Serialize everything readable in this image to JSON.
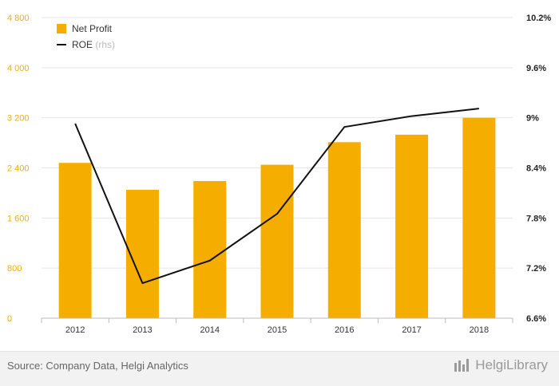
{
  "chart_data": {
    "type": "bar+line",
    "categories": [
      "2012",
      "2013",
      "2014",
      "2015",
      "2016",
      "2017",
      "2018"
    ],
    "series": [
      {
        "name": "Net Profit",
        "type": "bar",
        "axis": "left",
        "color": "#f5ae00",
        "values": [
          2480,
          2050,
          2190,
          2450,
          2810,
          2930,
          3200
        ]
      },
      {
        "name": "ROE",
        "name_suffix": "(rhs)",
        "type": "line",
        "axis": "right",
        "color": "#111111",
        "values": [
          8.93,
          7.02,
          7.29,
          7.85,
          8.89,
          9.02,
          9.11
        ]
      }
    ],
    "y_left": {
      "ticks": [
        "0",
        "800",
        "1 600",
        "2 400",
        "3 200",
        "4 000",
        "4 800"
      ],
      "range": [
        0,
        4800
      ]
    },
    "y_right": {
      "ticks": [
        "6.6%",
        "7.2%",
        "7.8%",
        "8.4%",
        "9%",
        "9.6%",
        "10.2%"
      ],
      "range": [
        6.6,
        10.2
      ]
    },
    "grid": "horizontal",
    "legend_position": "top-left"
  },
  "footer": {
    "source": "Source: Company Data, Helgi Analytics",
    "brand": "HelgiLibrary"
  }
}
